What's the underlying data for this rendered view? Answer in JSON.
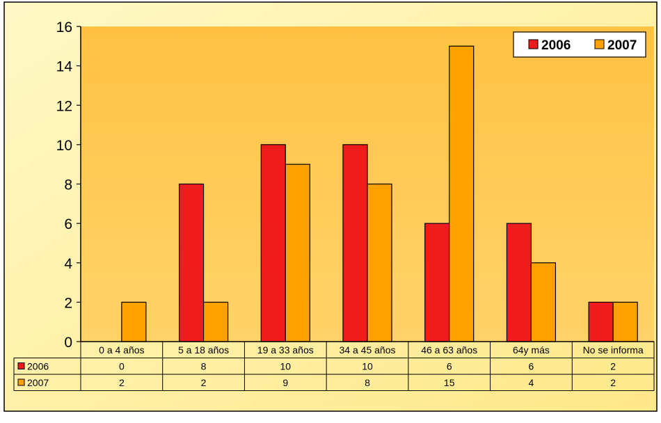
{
  "chart_data": {
    "type": "bar",
    "categories": [
      "0 a 4 años",
      "5 a 18 años",
      "19 a 33 años",
      "34 a 45 años",
      "46 a 63 años",
      "64y más",
      "No se informa"
    ],
    "series": [
      {
        "name": "2006",
        "values": [
          0,
          8,
          10,
          10,
          6,
          6,
          2
        ],
        "color": "#ee1c1c"
      },
      {
        "name": "2007",
        "values": [
          2,
          2,
          9,
          8,
          15,
          4,
          2
        ],
        "color": "#ffa200"
      }
    ],
    "yticks": [
      "0",
      "2",
      "4",
      "6",
      "8",
      "10",
      "12",
      "14",
      "16"
    ],
    "ylim": [
      0,
      16
    ],
    "legend_position": "top-right",
    "data_table": true,
    "colors": {
      "plot_bg": "#ffc74d",
      "page_bg": "#fff2a6",
      "outer_bg": "#ffffff"
    }
  }
}
